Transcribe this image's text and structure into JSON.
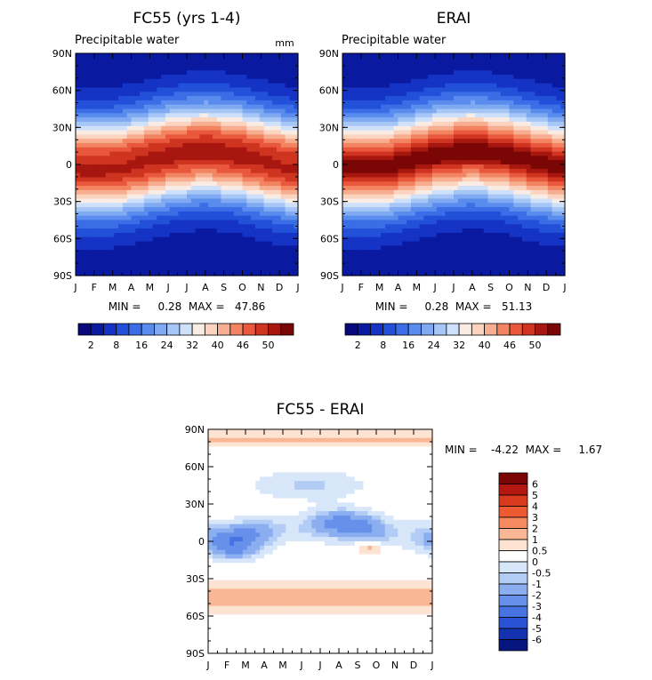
{
  "chart_data": [
    {
      "type": "heatmap",
      "title": "FC55 (yrs 1-4)",
      "subtitle": "Precipitable water",
      "unit": "mm",
      "x_ticks": [
        "J",
        "F",
        "M",
        "A",
        "M",
        "J",
        "J",
        "A",
        "S",
        "O",
        "N",
        "D",
        "J"
      ],
      "y_ticks": [
        "90N",
        "60N",
        "30N",
        "0",
        "30S",
        "60S",
        "90S"
      ],
      "stats": "MIN =     0.28  MAX =   47.86",
      "min": 0.28,
      "max": 47.86,
      "legend_levels": [
        2,
        4,
        8,
        12,
        16,
        20,
        24,
        28,
        32,
        36,
        40,
        44,
        46,
        48,
        50
      ],
      "legend_labels": [
        "2",
        "8",
        "16",
        "24",
        "32",
        "40",
        "46",
        "50"
      ],
      "grid": false
    },
    {
      "type": "heatmap",
      "title": "ERAI",
      "subtitle": "Precipitable water",
      "x_ticks": [
        "J",
        "F",
        "M",
        "A",
        "M",
        "J",
        "J",
        "A",
        "S",
        "O",
        "N",
        "D",
        "J"
      ],
      "y_ticks": [
        "90N",
        "60N",
        "30N",
        "0",
        "30S",
        "60S",
        "90S"
      ],
      "stats": "MIN =     0.28  MAX =   51.13",
      "min": 0.28,
      "max": 51.13,
      "legend_levels": [
        2,
        4,
        8,
        12,
        16,
        20,
        24,
        28,
        32,
        36,
        40,
        44,
        46,
        48,
        50
      ],
      "legend_labels": [
        "2",
        "8",
        "16",
        "24",
        "32",
        "40",
        "46",
        "50"
      ],
      "grid": false
    },
    {
      "type": "heatmap",
      "title": "FC55 - ERAI",
      "x_ticks": [
        "J",
        "F",
        "M",
        "A",
        "M",
        "J",
        "J",
        "A",
        "S",
        "O",
        "N",
        "D",
        "J"
      ],
      "y_ticks": [
        "90N",
        "60N",
        "30N",
        "0",
        "30S",
        "60S",
        "90S"
      ],
      "stats": "MIN =    -4.22  MAX =     1.67",
      "min": -4.22,
      "max": 1.67,
      "legend_labels": [
        "6",
        "5",
        "4",
        "3",
        "2",
        "1",
        "0.5",
        "0",
        "-0.5",
        "-1",
        "-2",
        "-3",
        "-4",
        "-5",
        "-6"
      ],
      "legend_placement": "right",
      "grid": false
    }
  ],
  "colors": {
    "seq_scale": [
      "#08087a",
      "#0a1aa0",
      "#1533c4",
      "#2250d8",
      "#3a6de6",
      "#5a8cee",
      "#7faaf2",
      "#a6c6f6",
      "#cfe0fa",
      "#f8ece4",
      "#fbd3bf",
      "#f7ad8f",
      "#f28462",
      "#e9583c",
      "#cf3420",
      "#a71710",
      "#7a0606"
    ],
    "div_scale": [
      "#7a0606",
      "#b4170f",
      "#d83a1e",
      "#ee5a32",
      "#f58a60",
      "#f9b796",
      "#fde4d2",
      "#ffffff",
      "#d8e6fa",
      "#b2ccf6",
      "#8aaef0",
      "#6690ea",
      "#4672e2",
      "#2a52d4",
      "#1432b0",
      "#06167e"
    ]
  }
}
